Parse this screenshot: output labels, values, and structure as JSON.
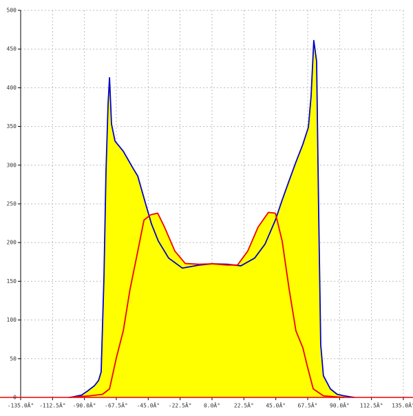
{
  "chart_data": {
    "type": "area",
    "xlim": [
      -135,
      135
    ],
    "ylim": [
      0,
      500
    ],
    "xticks": [
      {
        "value": -135,
        "label": "-135.0Â°"
      },
      {
        "value": -112.5,
        "label": "-112.5Â°"
      },
      {
        "value": -90,
        "label": "-90.0Â°"
      },
      {
        "value": -67.5,
        "label": "-67.5Â°"
      },
      {
        "value": -45,
        "label": "-45.0Â°"
      },
      {
        "value": -22.5,
        "label": "-22.5Â°"
      },
      {
        "value": 0,
        "label": "0.0Â°"
      },
      {
        "value": 22.5,
        "label": "22.5Â°"
      },
      {
        "value": 45,
        "label": "45.0Â°"
      },
      {
        "value": 67.5,
        "label": "67.5Â°"
      },
      {
        "value": 90,
        "label": "90.0Â°"
      },
      {
        "value": 112.5,
        "label": "112.5Â°"
      },
      {
        "value": 135,
        "label": "135.0Â°"
      }
    ],
    "yticks": [
      0,
      50,
      100,
      150,
      200,
      250,
      300,
      350,
      400,
      450,
      500
    ],
    "grid": true,
    "fill_color": "#ffff00",
    "series": [
      {
        "color": "#0000cc",
        "x": [
          -100,
          -92,
          -88,
          -83,
          -80,
          -78.2,
          -76.2,
          -74.8,
          -73.3,
          -72.3,
          -70.9,
          -68.4,
          -62.6,
          -55.4,
          -52.4,
          -47.6,
          -42.7,
          -37.9,
          -30.6,
          -20.9,
          -8.7,
          0,
          10.7,
          20.4,
          30.1,
          37.4,
          44.7,
          49.5,
          54.4,
          59.2,
          64.1,
          68,
          69.9,
          71.8,
          73.8,
          75.2,
          76.7,
          78.6,
          83.5,
          88.3,
          93.2,
          100.4
        ],
        "values": [
          0,
          3,
          8,
          15,
          22,
          33,
          157,
          291,
          380,
          413,
          353,
          331,
          318,
          295,
          286,
          255,
          224,
          202,
          180,
          167,
          171,
          172.6,
          172,
          170,
          180,
          198,
          229,
          255,
          280,
          304,
          327,
          349,
          389,
          461,
          434,
          246,
          68,
          28,
          11,
          4,
          2,
          0
        ]
      },
      {
        "color": "#ee0000",
        "x": [
          -101,
          -86.4,
          -77.2,
          -72.3,
          -67.5,
          -62.6,
          -57.8,
          -52.9,
          -48,
          -43.2,
          -38.3,
          -33.5,
          -26.2,
          -18.9,
          -9.2,
          0,
          10.7,
          18,
          25.2,
          32.5,
          39.8,
          44.7,
          49.5,
          54.4,
          59.2,
          64.1,
          67,
          71.4,
          78.6,
          93.2
        ],
        "values": [
          0,
          2,
          4,
          11,
          51,
          86,
          140,
          184,
          229,
          236,
          238,
          220,
          189,
          173,
          172,
          172.6,
          171,
          171,
          189,
          220,
          239,
          238,
          202,
          140,
          86,
          64,
          42,
          11,
          2,
          0
        ]
      }
    ]
  }
}
